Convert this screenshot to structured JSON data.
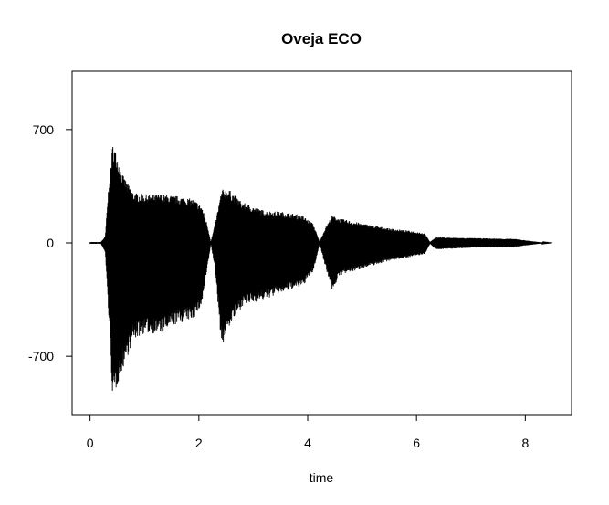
{
  "chart_data": {
    "type": "line",
    "title": "Oveja ECO",
    "xlabel": "time",
    "ylabel": "",
    "xlim": [
      -0.33,
      8.85
    ],
    "ylim": [
      -1060,
      1060
    ],
    "x_ticks": [
      0,
      2,
      4,
      6,
      8
    ],
    "x_tick_labels": [
      "0",
      "2",
      "4",
      "6",
      "8"
    ],
    "y_ticks": [
      -700,
      0,
      700
    ],
    "y_tick_labels": [
      "-700",
      "0",
      "700"
    ],
    "grid": false,
    "legend": "none",
    "color": "#000000",
    "waveform_envelope": [
      {
        "t": 0.0,
        "max": 5,
        "min": -5
      },
      {
        "t": 0.2,
        "max": 5,
        "min": -5
      },
      {
        "t": 0.28,
        "max": 40,
        "min": -60
      },
      {
        "t": 0.35,
        "max": 400,
        "min": -500
      },
      {
        "t": 0.42,
        "max": 620,
        "min": -990
      },
      {
        "t": 0.5,
        "max": 540,
        "min": -880
      },
      {
        "t": 0.6,
        "max": 420,
        "min": -780
      },
      {
        "t": 0.8,
        "max": 310,
        "min": -600
      },
      {
        "t": 1.0,
        "max": 300,
        "min": -560
      },
      {
        "t": 1.3,
        "max": 300,
        "min": -560
      },
      {
        "t": 1.6,
        "max": 290,
        "min": -500
      },
      {
        "t": 1.9,
        "max": 270,
        "min": -470
      },
      {
        "t": 2.05,
        "max": 230,
        "min": -390
      },
      {
        "t": 2.15,
        "max": 120,
        "min": -170
      },
      {
        "t": 2.22,
        "max": 5,
        "min": -5
      },
      {
        "t": 2.3,
        "max": 120,
        "min": -170
      },
      {
        "t": 2.42,
        "max": 330,
        "min": -650
      },
      {
        "t": 2.55,
        "max": 330,
        "min": -520
      },
      {
        "t": 2.8,
        "max": 250,
        "min": -390
      },
      {
        "t": 3.2,
        "max": 200,
        "min": -350
      },
      {
        "t": 3.6,
        "max": 190,
        "min": -300
      },
      {
        "t": 3.9,
        "max": 170,
        "min": -270
      },
      {
        "t": 4.1,
        "max": 120,
        "min": -180
      },
      {
        "t": 4.22,
        "max": 5,
        "min": -5
      },
      {
        "t": 4.32,
        "max": 90,
        "min": -140
      },
      {
        "t": 4.45,
        "max": 170,
        "min": -290
      },
      {
        "t": 4.6,
        "max": 150,
        "min": -200
      },
      {
        "t": 5.0,
        "max": 120,
        "min": -160
      },
      {
        "t": 5.5,
        "max": 90,
        "min": -110
      },
      {
        "t": 6.0,
        "max": 70,
        "min": -80
      },
      {
        "t": 6.15,
        "max": 60,
        "min": -70
      },
      {
        "t": 6.25,
        "max": 5,
        "min": -5
      },
      {
        "t": 6.35,
        "max": 35,
        "min": -40
      },
      {
        "t": 7.0,
        "max": 30,
        "min": -30
      },
      {
        "t": 7.8,
        "max": 25,
        "min": -25
      },
      {
        "t": 8.1,
        "max": 12,
        "min": -12
      },
      {
        "t": 8.3,
        "max": 3,
        "min": -3
      },
      {
        "t": 8.5,
        "max": 0,
        "min": 0
      }
    ]
  }
}
